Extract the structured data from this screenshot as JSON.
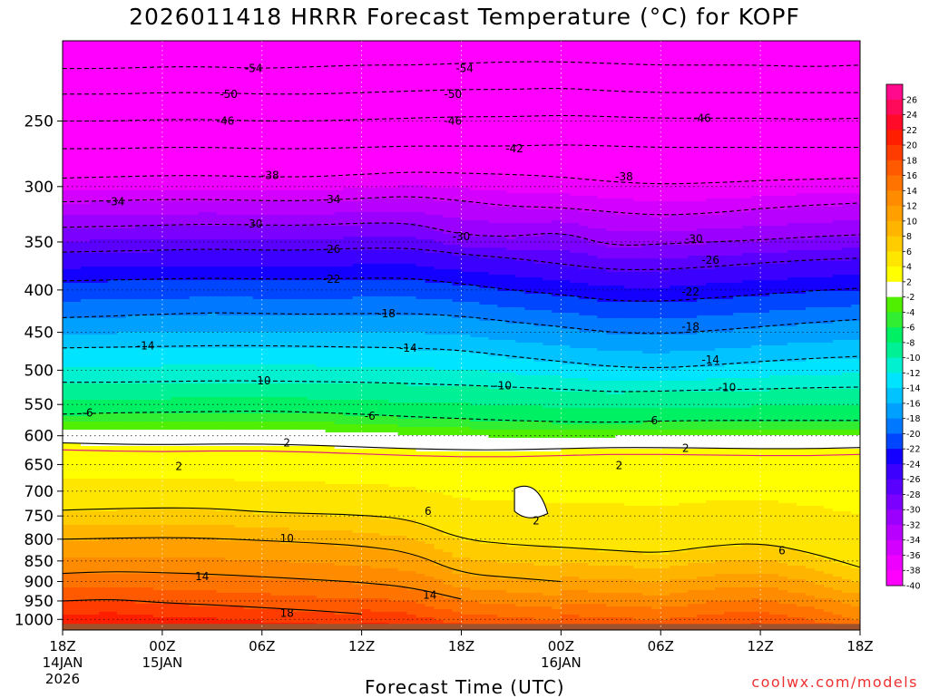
{
  "chart_data": {
    "type": "heatmap",
    "title": "2026011418 HRRR Forecast Temperature (°C) for KOPF",
    "xlabel": "Forecast Time (UTC)",
    "ylabel": "",
    "y_scale": "log",
    "y_reversed": true,
    "ylim": [
      1030,
      200
    ],
    "y_ticks": [
      250,
      300,
      350,
      400,
      450,
      500,
      550,
      600,
      650,
      700,
      750,
      800,
      850,
      900,
      950,
      1000
    ],
    "x_ticks": [
      {
        "hour": 0,
        "lines": [
          "18Z",
          "14JAN",
          "2026"
        ]
      },
      {
        "hour": 6,
        "lines": [
          "00Z",
          "15JAN"
        ]
      },
      {
        "hour": 12,
        "lines": [
          "06Z"
        ]
      },
      {
        "hour": 18,
        "lines": [
          "12Z"
        ]
      },
      {
        "hour": 24,
        "lines": [
          "18Z"
        ]
      },
      {
        "hour": 30,
        "lines": [
          "00Z",
          "16JAN"
        ]
      },
      {
        "hour": 36,
        "lines": [
          "06Z"
        ]
      },
      {
        "hour": 42,
        "lines": [
          "12Z"
        ]
      },
      {
        "hour": 48,
        "lines": [
          "18Z"
        ]
      }
    ],
    "xlim": [
      0,
      48
    ],
    "grid": true,
    "colorbar": {
      "levels": [
        -40,
        -38,
        -36,
        -34,
        -32,
        -30,
        -28,
        -26,
        -24,
        -22,
        -20,
        -18,
        -16,
        -14,
        -12,
        -10,
        -8,
        -6,
        -4,
        -2,
        2,
        4,
        6,
        8,
        10,
        12,
        14,
        16,
        18,
        20,
        22,
        24,
        26
      ],
      "labels": [
        "26",
        "24",
        "22",
        "20",
        "18",
        "16",
        "14",
        "12",
        "10",
        "8",
        "6",
        "4",
        "2",
        "-2",
        "-4",
        "-6",
        "-8",
        "-10",
        "-12",
        "-14",
        "-16",
        "-18",
        "-20",
        "-22",
        "-24",
        "-26",
        "-28",
        "-30",
        "-32",
        "-34",
        "-36",
        "-38",
        "-40"
      ],
      "colors": [
        "#ff00ff",
        "#ee00ff",
        "#d400ff",
        "#b800ff",
        "#9b00ff",
        "#7b00ff",
        "#5a00ff",
        "#3c00ff",
        "#1400ff",
        "#0046ff",
        "#0078ff",
        "#00a0ff",
        "#00c3ff",
        "#00e4ff",
        "#00f0d0",
        "#00f096",
        "#00f064",
        "#32ee32",
        "#50ee00",
        "#ffffff",
        "#ffff00",
        "#ffe600",
        "#ffcc00",
        "#ffb400",
        "#ffa000",
        "#ff8c00",
        "#ff7300",
        "#ff5a00",
        "#ff3c00",
        "#ff1e00",
        "#ff0a28",
        "#ff0a5a",
        "#ff0a8c"
      ]
    },
    "isotherms": [
      {
        "temp": -54,
        "pressures": [
          216,
          216,
          215,
          215,
          216,
          215,
          214,
          214,
          213,
          212,
          212,
          213,
          214,
          214,
          214,
          215,
          214
        ]
      },
      {
        "temp": -50,
        "pressures": [
          232,
          232,
          231,
          231,
          232,
          232,
          231,
          230,
          229,
          229,
          228,
          230,
          231,
          231,
          231,
          231,
          231
        ]
      },
      {
        "temp": -46,
        "pressures": [
          250,
          250,
          249,
          249,
          250,
          250,
          249,
          248,
          247,
          247,
          246,
          247,
          248,
          248,
          248,
          249,
          248
        ]
      },
      {
        "temp": -42,
        "pressures": [
          270,
          270,
          269,
          269,
          270,
          270,
          269,
          268,
          268,
          268,
          267,
          268,
          269,
          269,
          269,
          269,
          269
        ]
      },
      {
        "temp": -38,
        "pressures": [
          293,
          292,
          291,
          291,
          292,
          292,
          290,
          288,
          289,
          290,
          292,
          296,
          298,
          297,
          295,
          294,
          293
        ]
      },
      {
        "temp": -34,
        "pressures": [
          313,
          312,
          311,
          311,
          312,
          312,
          310,
          308,
          312,
          317,
          318,
          322,
          325,
          323,
          319,
          316,
          314
        ]
      },
      {
        "temp": -30,
        "pressures": [
          336,
          335,
          334,
          333,
          334,
          334,
          332,
          332,
          343,
          345,
          340,
          354,
          352,
          350,
          348,
          345,
          343
        ]
      },
      {
        "temp": -26,
        "pressures": [
          360,
          359,
          358,
          357,
          358,
          358,
          356,
          356,
          362,
          366,
          372,
          378,
          378,
          375,
          371,
          368,
          366
        ]
      },
      {
        "temp": -22,
        "pressures": [
          390,
          389,
          388,
          387,
          388,
          388,
          387,
          387,
          393,
          400,
          405,
          412,
          413,
          409,
          405,
          401,
          398
        ]
      },
      {
        "temp": -18,
        "pressures": [
          432,
          430,
          428,
          426,
          427,
          428,
          427,
          427,
          430,
          437,
          443,
          450,
          452,
          448,
          443,
          438,
          434
        ]
      },
      {
        "temp": -14,
        "pressures": [
          470,
          469,
          468,
          467,
          467,
          468,
          469,
          470,
          473,
          481,
          488,
          495,
          497,
          493,
          488,
          484,
          481
        ]
      },
      {
        "temp": -10,
        "pressures": [
          517,
          517,
          516,
          515,
          515,
          516,
          517,
          519,
          521,
          524,
          527,
          531,
          530,
          528,
          527,
          525,
          524
        ]
      },
      {
        "temp": -6,
        "pressures": [
          565,
          563,
          562,
          561,
          560,
          562,
          565,
          569,
          572,
          575,
          577,
          578,
          576,
          575,
          575,
          575,
          575
        ]
      },
      {
        "temp": 2,
        "pressures": [
          612,
          614,
          615,
          614,
          614,
          616,
          619,
          622,
          624,
          624,
          622,
          620,
          620,
          621,
          622,
          622,
          620
        ]
      },
      {
        "temp": 6,
        "pressures": [
          738,
          735,
          733,
          734,
          742,
          745,
          748,
          757,
          800,
          812,
          818,
          825,
          832,
          815,
          808,
          830,
          865
        ]
      },
      {
        "temp": 10,
        "pressures": [
          800,
          798,
          796,
          798,
          803,
          808,
          815,
          830,
          880,
          890,
          900
        ]
      },
      {
        "temp": 14,
        "pressures": [
          880,
          875,
          878,
          882,
          888,
          895,
          902,
          915,
          945
        ]
      },
      {
        "temp": 18,
        "pressures": [
          950,
          945,
          955,
          960,
          968,
          975,
          985
        ]
      }
    ]
  },
  "labels": {
    "ytick_labels": [
      "250",
      "300",
      "350",
      "400",
      "450",
      "500",
      "550",
      "600",
      "650",
      "700",
      "750",
      "800",
      "850",
      "900",
      "950",
      "1000"
    ],
    "watermark": "coolwx.com/models",
    "contour_labels": [
      "-54",
      "-54",
      "-50",
      "-50",
      "-46",
      "-46",
      "-46",
      "-42",
      "-38",
      "-38",
      "-34",
      "-34",
      "-30",
      "-30",
      "-30",
      "-26",
      "-26",
      "-22",
      "-22",
      "-18",
      "-18",
      "-14",
      "-14",
      "-14",
      "-10",
      "-10",
      "-10",
      "-6",
      "-6",
      "-6",
      "2",
      "2",
      "2",
      "2",
      "2",
      "6",
      "6",
      "10",
      "14",
      "14",
      "18"
    ]
  },
  "colors": {
    "ground": "#a0522d",
    "isotherm_zero": "#e0207a",
    "watermark": "#ee3030"
  }
}
